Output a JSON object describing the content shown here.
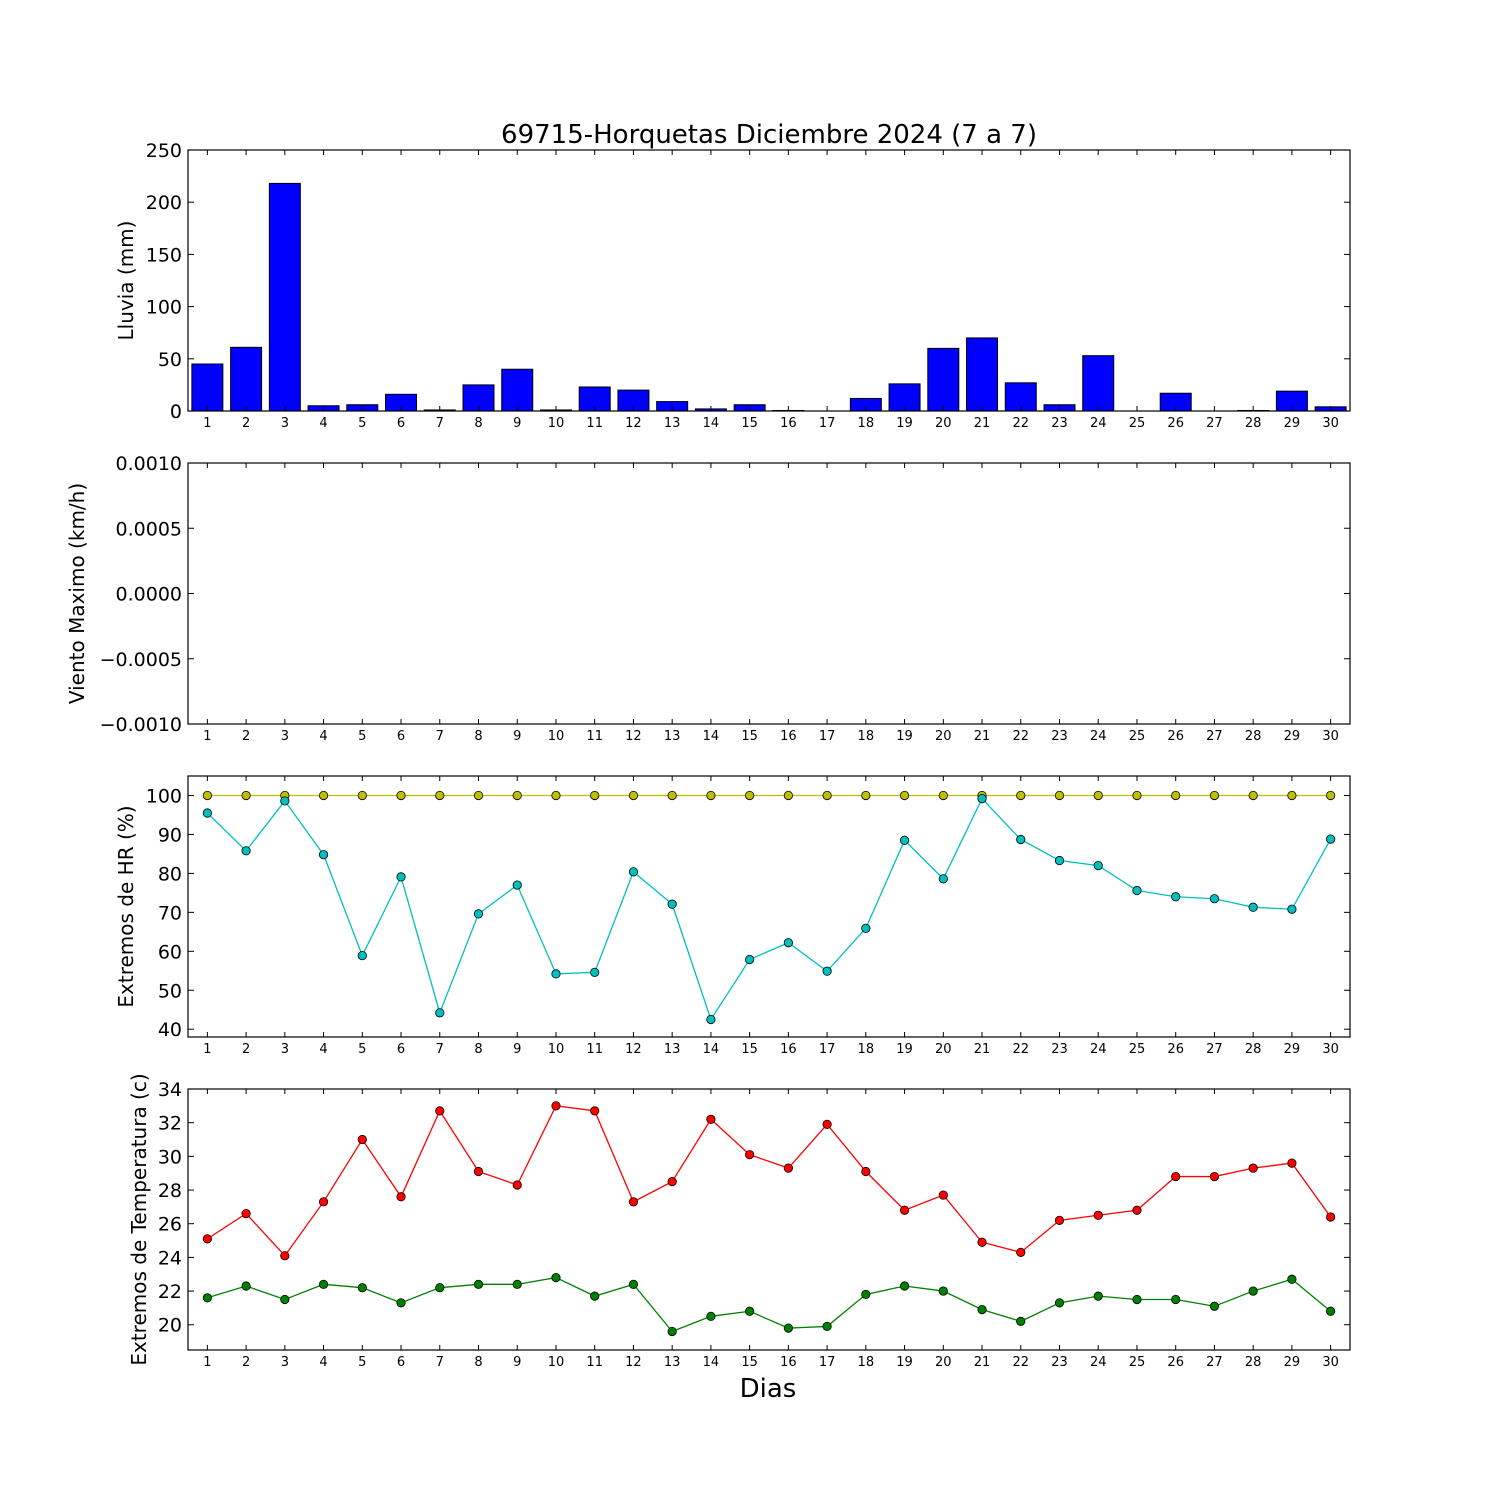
{
  "title": "69715-Horquetas Diciembre 2024  (7 a 7)",
  "xlabel": "Dias",
  "chart_data": [
    {
      "type": "bar",
      "ylabel": "Lluvia (mm)",
      "ylim": [
        0,
        250
      ],
      "yticks": [
        "0",
        "50",
        "100",
        "150",
        "200",
        "250"
      ],
      "xticks": [
        "1",
        "2",
        "3",
        "4",
        "5",
        "6",
        "7",
        "8",
        "9",
        "10",
        "11",
        "12",
        "13",
        "14",
        "15",
        "16",
        "17",
        "18",
        "19",
        "20",
        "21",
        "22",
        "23",
        "24",
        "25",
        "26",
        "27",
        "28",
        "29",
        "30"
      ],
      "color": "#0000ff",
      "series": [
        {
          "values": [
            45,
            61,
            218,
            5,
            6,
            16,
            1,
            25,
            40,
            1,
            23,
            20,
            9,
            2,
            6,
            0.5,
            0,
            12,
            26,
            60,
            70,
            27,
            6,
            53,
            0,
            17,
            0,
            0.5,
            19,
            4
          ]
        }
      ]
    },
    {
      "type": "line",
      "ylabel": "Viento Maximo (km/h)",
      "ylim": [
        -0.001,
        0.001
      ],
      "yticks": [
        "−0.0010",
        "−0.0005",
        "0.0000",
        "0.0005",
        "0.0010"
      ],
      "xticks": [
        "1",
        "2",
        "3",
        "4",
        "5",
        "6",
        "7",
        "8",
        "9",
        "10",
        "11",
        "12",
        "13",
        "14",
        "15",
        "16",
        "17",
        "18",
        "19",
        "20",
        "21",
        "22",
        "23",
        "24",
        "25",
        "26",
        "27",
        "28",
        "29",
        "30"
      ],
      "series": []
    },
    {
      "type": "line",
      "ylabel": "Extremos de HR (%)",
      "ylim": [
        38,
        105
      ],
      "yticks": [
        "40",
        "50",
        "60",
        "70",
        "80",
        "90",
        "100"
      ],
      "xticks": [
        "1",
        "2",
        "3",
        "4",
        "5",
        "6",
        "7",
        "8",
        "9",
        "10",
        "11",
        "12",
        "13",
        "14",
        "15",
        "16",
        "17",
        "18",
        "19",
        "20",
        "21",
        "22",
        "23",
        "24",
        "25",
        "26",
        "27",
        "28",
        "29",
        "30"
      ],
      "series": [
        {
          "color": "#bfbf00",
          "values": [
            100,
            100,
            100,
            100,
            100,
            100,
            100,
            100,
            100,
            100,
            100,
            100,
            100,
            100,
            100,
            100,
            100,
            100,
            100,
            100,
            100,
            100,
            100,
            100,
            100,
            100,
            100,
            100,
            100,
            100
          ]
        },
        {
          "color": "#00bfbf",
          "values": [
            95.5,
            85.8,
            98.6,
            84.8,
            58.9,
            79.1,
            44.2,
            69.6,
            77.0,
            54.2,
            54.6,
            80.4,
            72.1,
            42.5,
            57.9,
            62.2,
            54.9,
            65.9,
            88.5,
            78.6,
            99.2,
            88.7,
            83.3,
            82.0,
            75.6,
            74.0,
            73.5,
            71.3,
            70.8,
            88.8
          ]
        }
      ]
    },
    {
      "type": "line",
      "ylabel": "Extremos de Temperatura (c)",
      "ylim": [
        18.5,
        34
      ],
      "yticks": [
        "20",
        "22",
        "24",
        "26",
        "28",
        "30",
        "32",
        "34"
      ],
      "xticks": [
        "1",
        "2",
        "3",
        "4",
        "5",
        "6",
        "7",
        "8",
        "9",
        "10",
        "11",
        "12",
        "13",
        "14",
        "15",
        "16",
        "17",
        "18",
        "19",
        "20",
        "21",
        "22",
        "23",
        "24",
        "25",
        "26",
        "27",
        "28",
        "29",
        "30"
      ],
      "series": [
        {
          "color": "#ff0000",
          "values": [
            25.1,
            26.6,
            24.1,
            27.3,
            31.0,
            27.6,
            32.7,
            29.1,
            28.3,
            33.0,
            32.7,
            27.3,
            28.5,
            32.2,
            30.1,
            29.3,
            31.9,
            29.1,
            26.8,
            27.7,
            24.9,
            24.3,
            26.2,
            26.5,
            26.8,
            28.8,
            28.8,
            29.3,
            29.6,
            26.4
          ]
        },
        {
          "color": "#008000",
          "values": [
            21.6,
            22.3,
            21.5,
            22.4,
            22.2,
            21.3,
            22.2,
            22.4,
            22.4,
            22.8,
            21.7,
            22.4,
            19.6,
            20.5,
            20.8,
            19.8,
            19.9,
            21.8,
            22.3,
            22.0,
            20.9,
            20.2,
            21.3,
            21.7,
            21.5,
            21.5,
            21.1,
            22.0,
            22.7,
            20.8
          ]
        }
      ]
    }
  ]
}
